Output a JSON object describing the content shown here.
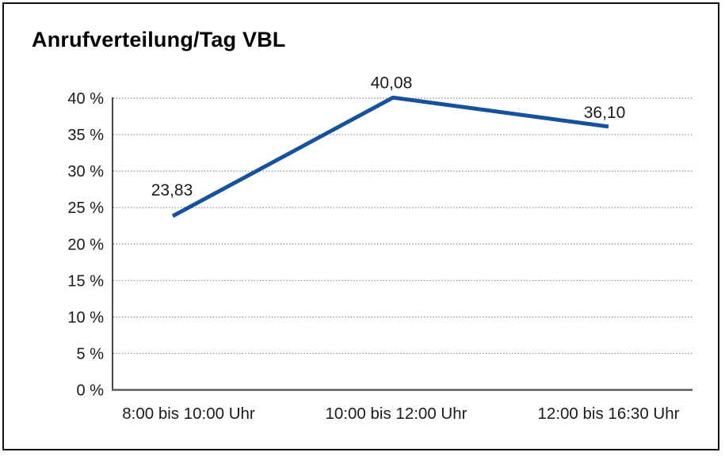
{
  "window": {
    "background_color": "#ffffff",
    "frame_border_color": "#111111"
  },
  "chart_data": {
    "type": "line",
    "title": "Anrufverteilung/Tag VBL",
    "categories": [
      "8:00 bis 10:00 Uhr",
      "10:00 bis 12:00 Uhr",
      "12:00 bis 16:30 Uhr"
    ],
    "series": [
      {
        "values": [
          23.83,
          40.08,
          36.1
        ],
        "value_labels": [
          "23,83",
          "40,08",
          "36,10"
        ],
        "color": "#15519c"
      }
    ],
    "xlabel": "",
    "ylabel": "",
    "ylim": [
      0,
      40
    ],
    "y_ticks": [
      0,
      5,
      10,
      15,
      20,
      25,
      30,
      35,
      40
    ],
    "y_tick_labels": [
      "0 %",
      "5 %",
      "10 %",
      "15 %",
      "20 %",
      "25 %",
      "30 %",
      "35 %",
      "40 %"
    ],
    "grid": "horizontal-dotted",
    "legend": false,
    "grid_color": "#7a7a7a",
    "y_axis_color": "#1a1a1a",
    "x_axis_color": "#595959"
  }
}
